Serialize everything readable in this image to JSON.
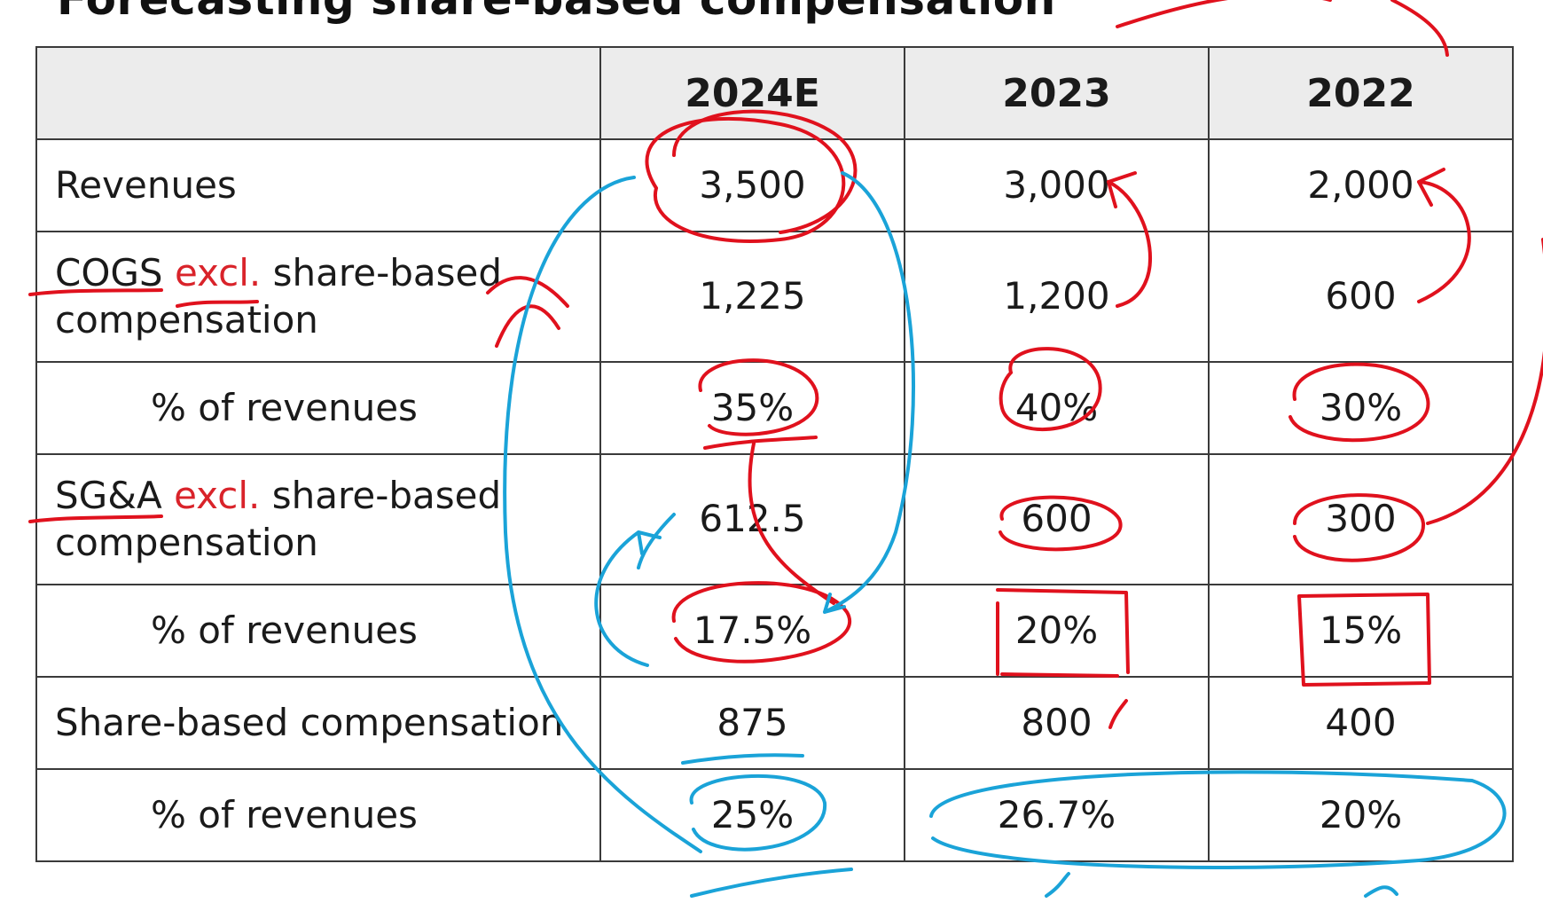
{
  "title": "Forecasting share-based compensation",
  "table": {
    "header": [
      "",
      "2024E",
      "2023",
      "2022"
    ],
    "rows": [
      {
        "label": "Revenues",
        "values": [
          "3,500",
          "3,000",
          "2,000"
        ]
      },
      {
        "label_pre": "COGS",
        "label_excl": "excl.",
        "label_post": "share-based compensation",
        "values": [
          "1,225",
          "1,200",
          "600"
        ]
      },
      {
        "label": "% of revenues",
        "values": [
          "35%",
          "40%",
          "30%"
        ]
      },
      {
        "label_pre": "SG&A",
        "label_excl": "excl.",
        "label_post": "share-based compensation",
        "values": [
          "612.5",
          "600",
          "300"
        ]
      },
      {
        "label": "% of revenues",
        "values": [
          "17.5%",
          "20%",
          "15%"
        ]
      },
      {
        "label": "Share-based compensation",
        "values": [
          "875",
          "800",
          "400"
        ]
      },
      {
        "label": "% of revenues",
        "values": [
          "25%",
          "26.7%",
          "20%"
        ]
      }
    ]
  },
  "colors": {
    "ink_red": "#e0111d",
    "ink_blue": "#1aa3d8",
    "excl_text": "#d9232a",
    "header_bg": "#ececec",
    "grid": "#3a3a3a"
  }
}
